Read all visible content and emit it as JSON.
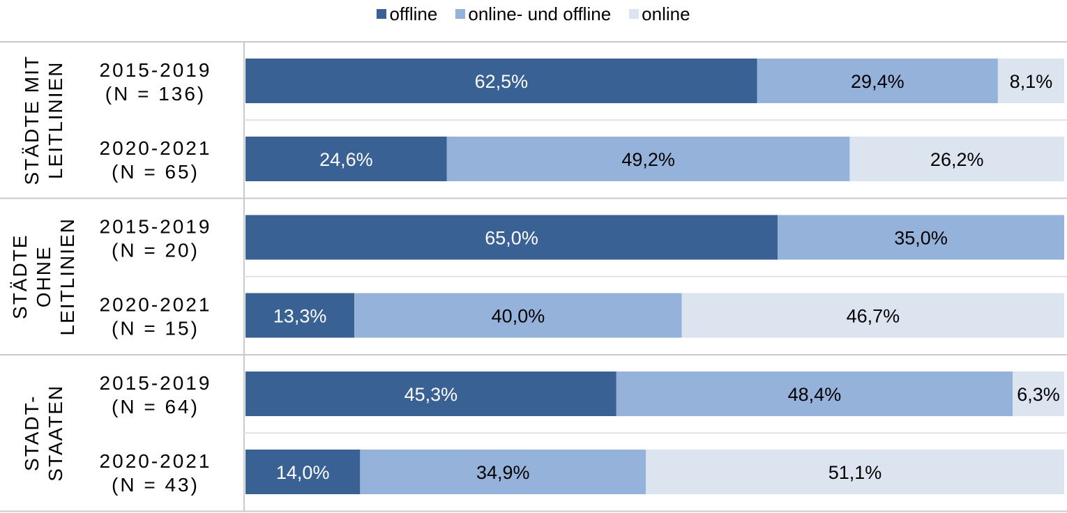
{
  "chart_data": {
    "type": "bar",
    "orientation": "horizontal",
    "stacked": "100%",
    "legend_position": "top",
    "series": [
      {
        "name": "offline",
        "color": "#3a6194",
        "label_color": "#ffffff"
      },
      {
        "name": "online- und offline",
        "color": "#95b3da",
        "label_color": "#000000"
      },
      {
        "name": "online",
        "color": "#dce4f0",
        "label_color": "#000000"
      }
    ],
    "groups": [
      {
        "label_lines": [
          "STÄDTE MIT",
          "LEITLINIEN"
        ],
        "rows": [
          {
            "label_lines": [
              "2015-2019",
              "(N = 136)"
            ],
            "values": [
              62.5,
              29.4,
              8.1
            ],
            "labels": [
              "62,5%",
              "29,4%",
              "8,1%"
            ]
          },
          {
            "label_lines": [
              "2020-2021",
              "(N = 65)"
            ],
            "values": [
              24.6,
              49.2,
              26.2
            ],
            "labels": [
              "24,6%",
              "49,2%",
              "26,2%"
            ]
          }
        ]
      },
      {
        "label_lines": [
          "STÄDTE",
          "OHNE",
          "LEITLINIEN"
        ],
        "rows": [
          {
            "label_lines": [
              "2015-2019",
              "(N = 20)"
            ],
            "values": [
              65.0,
              35.0,
              0
            ],
            "labels": [
              "65,0%",
              "35,0%",
              ""
            ]
          },
          {
            "label_lines": [
              "2020-2021",
              "(N = 15)"
            ],
            "values": [
              13.3,
              40.0,
              46.7
            ],
            "labels": [
              "13,3%",
              "40,0%",
              "46,7%"
            ]
          }
        ]
      },
      {
        "label_lines": [
          "STADT-",
          "STAATEN"
        ],
        "rows": [
          {
            "label_lines": [
              "2015-2019",
              "(N = 64)"
            ],
            "values": [
              45.3,
              48.4,
              6.3
            ],
            "labels": [
              "45,3%",
              "48,4%",
              "6,3%"
            ]
          },
          {
            "label_lines": [
              "2020-2021",
              "(N = 43)"
            ],
            "values": [
              14.0,
              34.9,
              51.1
            ],
            "labels": [
              "14,0%",
              "34,9%",
              "51,1%"
            ]
          }
        ]
      }
    ],
    "xlim": [
      0,
      100
    ],
    "grid": false
  }
}
